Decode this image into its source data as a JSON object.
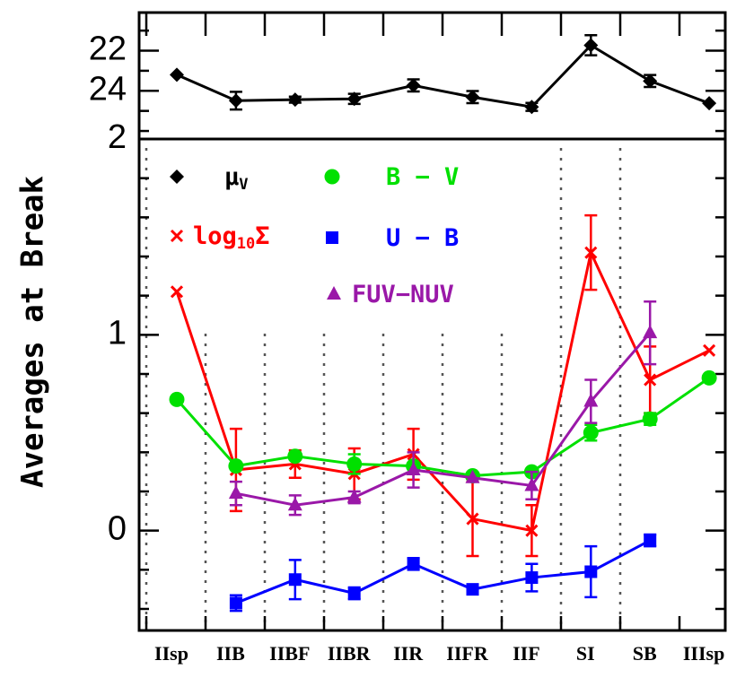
{
  "chart_data": {
    "type": "line",
    "categories": [
      "IIsp",
      "IIB",
      "IIBF",
      "IIBR",
      "IIR",
      "IIFR",
      "IIF",
      "SI",
      "SB",
      "IIIsp"
    ],
    "y_label": "Averages at Break",
    "panels": [
      {
        "ylim": [
          20.1,
          26.4
        ],
        "y_inverted": true,
        "yticks": [
          22,
          24
        ],
        "yminor": [
          21,
          23,
          25,
          26
        ],
        "series": [
          {
            "name_parts": [
              "μ",
              "V"
            ],
            "color": "#000000",
            "marker": "diamond",
            "values": [
              23.2,
              24.49,
              24.44,
              24.4,
              23.73,
              24.31,
              24.8,
              21.73,
              23.51,
              24.62
            ],
            "errors": [
              null,
              0.44,
              0.15,
              0.25,
              0.3,
              0.3,
              0.2,
              0.5,
              0.3,
              null
            ]
          }
        ]
      },
      {
        "ylim": [
          -0.51,
          2
        ],
        "y_inverted": false,
        "yticks": [
          0,
          1,
          2
        ],
        "yminor": [
          -0.4,
          -0.2,
          0.2,
          0.4,
          0.6,
          0.8,
          1.2,
          1.4,
          1.6,
          1.8
        ],
        "series": [
          {
            "name_parts": [
              "log",
              "10",
              "Σ"
            ],
            "color": "#ff0000",
            "marker": "cross",
            "values": [
              1.22,
              0.31,
              0.34,
              0.29,
              0.39,
              0.06,
              0.0,
              1.42,
              0.77,
              0.92
            ],
            "errors": [
              null,
              0.21,
              0.07,
              0.13,
              0.13,
              0.19,
              0.13,
              0.19,
              0.17,
              null
            ]
          },
          {
            "name_parts": [
              "B − V"
            ],
            "color": "#00e000",
            "marker": "circle",
            "values": [
              0.67,
              0.33,
              0.38,
              0.34,
              0.33,
              0.28,
              0.3,
              0.5,
              0.57,
              0.78
            ],
            "errors": [
              null,
              null,
              null,
              0.05,
              null,
              null,
              null,
              0.04,
              0.03,
              null
            ]
          },
          {
            "name_parts": [
              "U − B"
            ],
            "color": "#0000ff",
            "marker": "square",
            "values": [
              null,
              -0.37,
              -0.25,
              -0.32,
              -0.17,
              -0.3,
              -0.24,
              -0.21,
              -0.05,
              null
            ],
            "errors": [
              null,
              0.04,
              0.1,
              0.03,
              0.03,
              0.02,
              0.07,
              0.13,
              0.03,
              null
            ]
          },
          {
            "name_parts": [
              "FUV−NUV"
            ],
            "color": "#9a18a8",
            "marker": "triangle",
            "values": [
              null,
              0.19,
              0.13,
              0.17,
              0.31,
              0.27,
              0.23,
              0.66,
              1.01,
              null
            ],
            "errors": [
              null,
              0.06,
              0.05,
              0.03,
              0.09,
              null,
              0.07,
              0.11,
              0.16,
              null
            ]
          }
        ]
      }
    ]
  }
}
